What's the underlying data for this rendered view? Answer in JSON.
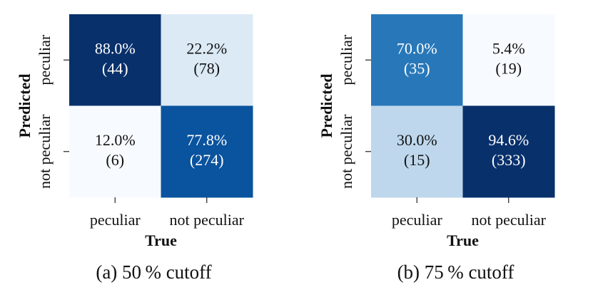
{
  "chart_data": [
    {
      "type": "heatmap",
      "title": "(a) 50 % cutoff",
      "xlabel": "True",
      "ylabel": "Predicted",
      "x_categories": [
        "peculiar",
        "not peculiar"
      ],
      "y_categories": [
        "peculiar",
        "not peculiar"
      ],
      "values": [
        [
          88.0,
          22.2
        ],
        [
          12.0,
          77.8
        ]
      ],
      "value_labels": [
        [
          "88.0%",
          "22.2%"
        ],
        [
          "12.0%",
          "77.8%"
        ]
      ],
      "counts": [
        [
          44,
          78
        ],
        [
          6,
          274
        ]
      ],
      "count_labels": [
        [
          "(44)",
          "(78)"
        ],
        [
          "(6)",
          "(274)"
        ]
      ],
      "colormap": "Blues"
    },
    {
      "type": "heatmap",
      "title": "(b) 75 % cutoff",
      "xlabel": "True",
      "ylabel": "Predicted",
      "x_categories": [
        "peculiar",
        "not peculiar"
      ],
      "y_categories": [
        "peculiar",
        "not peculiar"
      ],
      "values": [
        [
          70.0,
          5.4
        ],
        [
          30.0,
          94.6
        ]
      ],
      "value_labels": [
        [
          "70.0%",
          "5.4%"
        ],
        [
          "30.0%",
          "94.6%"
        ]
      ],
      "counts": [
        [
          35,
          19
        ],
        [
          15,
          333
        ]
      ],
      "count_labels": [
        [
          "(35)",
          "(19)"
        ],
        [
          "(15)",
          "(333)"
        ]
      ],
      "colormap": "Blues"
    }
  ]
}
